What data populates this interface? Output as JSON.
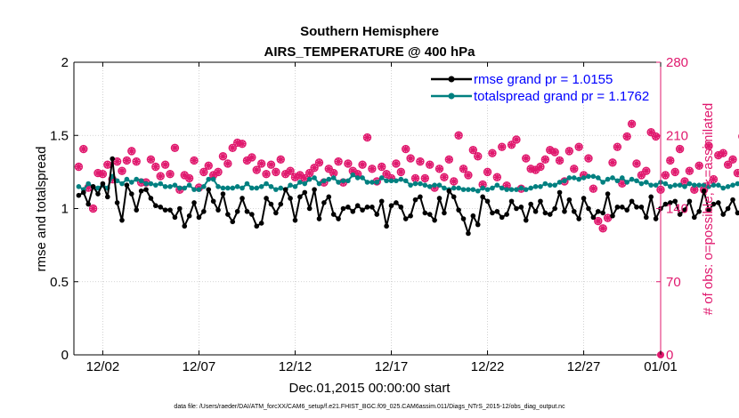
{
  "chart_data": {
    "type": "line",
    "title": "Southern Hemisphere",
    "subtitle": "AIRS_TEMPERATURE @ 400 hPa",
    "xlabel": "Dec.01,2015 00:00:00 start",
    "ylabel_left": "rmse and totalspread",
    "ylabel_right": "# of obs: o=possible; ∗=assimilated",
    "footer": "data file: /Users/raeder/DAI/ATM_forcXX/CAM6_setup/f.e21.FHIST_BGC.f09_025.CAM6assim.011/Diags_NTrS_2015-12/obs_diag_output.nc",
    "x_range": [
      0.5,
      31.0
    ],
    "x_ticks": [
      {
        "value": 2,
        "label": "12/02"
      },
      {
        "value": 7,
        "label": "12/07"
      },
      {
        "value": 12,
        "label": "12/12"
      },
      {
        "value": 17,
        "label": "12/17"
      },
      {
        "value": 22,
        "label": "12/22"
      },
      {
        "value": 27,
        "label": "12/27"
      },
      {
        "value": 31,
        "label": "01/01"
      }
    ],
    "ylim_left": [
      0,
      2
    ],
    "y_ticks_left": [
      "0",
      "0.5",
      "1",
      "1.5",
      "2"
    ],
    "ylim_right": [
      0,
      280
    ],
    "y_ticks_right": [
      "0",
      "70",
      "140",
      "210",
      "280"
    ],
    "x_start": 0.75,
    "x_step": 0.25,
    "series": [
      {
        "name": "rmse grand pr = 1.0155",
        "axis": "left",
        "color": "#000000",
        "values": [
          1.09,
          1.11,
          1.03,
          1.15,
          1.1,
          1.17,
          1.08,
          1.34,
          1.04,
          0.92,
          1.16,
          1.1,
          0.99,
          1.12,
          1.13,
          1.07,
          1.02,
          1.01,
          0.99,
          0.99,
          0.94,
          1.0,
          0.88,
          0.95,
          1.04,
          0.94,
          0.98,
          1.13,
          1.05,
          0.99,
          1.1,
          0.96,
          0.91,
          0.98,
          1.07,
          0.98,
          0.96,
          0.88,
          0.9,
          1.07,
          1.03,
          0.97,
          1.03,
          1.13,
          1.07,
          0.92,
          1.08,
          1.11,
          1.0,
          1.13,
          0.93,
          1.04,
          1.08,
          0.96,
          0.93,
          1.0,
          1.01,
          0.98,
          1.02,
          0.99,
          1.01,
          1.01,
          0.96,
          1.05,
          0.88,
          1.02,
          1.04,
          1.01,
          0.93,
          0.95,
          1.06,
          1.08,
          0.97,
          0.96,
          0.92,
          1.07,
          0.97,
          1.12,
          1.08,
          0.99,
          0.93,
          0.83,
          0.95,
          0.89,
          1.08,
          1.05,
          0.97,
          0.98,
          0.94,
          0.96,
          1.05,
          1.0,
          1.01,
          0.92,
          1.03,
          0.98,
          1.05,
          0.97,
          0.96,
          1.0,
          1.11,
          0.98,
          1.06,
          0.98,
          0.93,
          1.07,
          1.0,
          0.94,
          0.98,
          0.97,
          1.1,
          0.95,
          1.01,
          1.01,
          0.99,
          1.05,
          1.01,
          1.01,
          0.94,
          1.08,
          0.93,
          1.0,
          1.03,
          1.04,
          1.05,
          0.96,
          0.99,
          1.05,
          0.94,
          0.98,
          1.12,
          0.99,
          1.03,
          1.04,
          0.96,
          1.0,
          1.06,
          0.97,
          1.0,
          0.98,
          0.95,
          1.06,
          0.99,
          1.0,
          1.02,
          0.97,
          1.05,
          0.93,
          0.99,
          1.03,
          1.01,
          0.93,
          0.98,
          0.96,
          0.98,
          1.02,
          0.95,
          1.02,
          1.11,
          1.06,
          1.02,
          1.08,
          0.97,
          0.92,
          1.04,
          0.99,
          1.03,
          0.95,
          1.05,
          0.99,
          0.94,
          1.02,
          0.96,
          1.06,
          0.99,
          1.0,
          1.0,
          1.05,
          0.93,
          1.08,
          1.05,
          1.02,
          1.11,
          1.06,
          1.0,
          1.05,
          0.93,
          0.95,
          1.07,
          0.98,
          0.99,
          0.94,
          1.03,
          0.94,
          0.99,
          1.07,
          0.94,
          1.03,
          1.02,
          1.11,
          0.95,
          1.0,
          1.03,
          1.06,
          1.12,
          1.03,
          0.92,
          1.0,
          0.99,
          1.03,
          0.95,
          1.06,
          0.94,
          1.04,
          1.07,
          1.04,
          1.02,
          0.94,
          1.0,
          1.06,
          0.99,
          1.03,
          0.98,
          1.04,
          1.03,
          0.99,
          0.95,
          0.94,
          0.94,
          1.08,
          0.92,
          1.0,
          1.05,
          0.97,
          1.0,
          1.08,
          0.96,
          1.0,
          1.05,
          1.03,
          0.96,
          0.97,
          1.02,
          1.0,
          1.06,
          0.92,
          0.98,
          1.09,
          0.94,
          1.0,
          1.06,
          0.91,
          1.06,
          1.01,
          1.06,
          1.02,
          1.06,
          0.83,
          0.94,
          0.95,
          0.91,
          0.95,
          0.96,
          1.12,
          1.0,
          0.95,
          1.04,
          0.92
        ]
      },
      {
        "name": "totalspread grand pr = 1.1762",
        "axis": "left",
        "color": "#008080",
        "values": [
          1.15,
          1.13,
          1.17,
          1.15,
          1.14,
          1.16,
          1.14,
          1.22,
          1.19,
          1.17,
          1.2,
          1.18,
          1.2,
          1.19,
          1.17,
          1.17,
          1.16,
          1.17,
          1.15,
          1.15,
          1.16,
          1.14,
          1.14,
          1.16,
          1.13,
          1.13,
          1.15,
          1.2,
          1.2,
          1.15,
          1.14,
          1.14,
          1.14,
          1.15,
          1.14,
          1.17,
          1.14,
          1.14,
          1.15,
          1.17,
          1.15,
          1.13,
          1.14,
          1.13,
          1.16,
          1.15,
          1.18,
          1.17,
          1.2,
          1.21,
          1.17,
          1.19,
          1.2,
          1.21,
          1.18,
          1.19,
          1.19,
          1.23,
          1.21,
          1.21,
          1.18,
          1.18,
          1.18,
          1.21,
          1.19,
          1.19,
          1.19,
          1.2,
          1.19,
          1.16,
          1.17,
          1.17,
          1.16,
          1.15,
          1.16,
          1.16,
          1.14,
          1.13,
          1.14,
          1.14,
          1.13,
          1.13,
          1.13,
          1.12,
          1.14,
          1.13,
          1.14,
          1.16,
          1.14,
          1.13,
          1.13,
          1.13,
          1.14,
          1.13,
          1.14,
          1.15,
          1.15,
          1.17,
          1.16,
          1.16,
          1.18,
          1.19,
          1.21,
          1.21,
          1.2,
          1.21,
          1.22,
          1.22,
          1.21,
          1.18,
          1.2,
          1.21,
          1.19,
          1.21,
          1.18,
          1.2,
          1.19,
          1.17,
          1.18,
          1.16,
          1.16,
          1.18,
          1.17,
          1.15,
          1.16,
          1.16,
          1.15,
          1.17,
          1.16,
          1.16,
          1.16,
          1.15,
          1.16,
          1.16,
          1.14,
          1.15,
          1.16,
          1.17,
          1.15,
          1.14,
          1.14,
          1.14,
          1.17,
          1.15,
          1.15,
          1.15,
          1.14,
          1.15,
          1.16,
          1.14,
          1.15,
          1.16,
          1.17,
          1.15,
          1.17,
          1.16,
          1.17,
          1.17,
          1.19,
          1.17,
          1.19,
          1.2,
          1.18,
          1.17,
          1.17,
          1.17,
          1.17,
          1.19,
          1.17,
          1.19,
          1.18,
          1.2,
          1.2,
          1.19,
          1.18,
          1.18,
          1.19,
          1.17,
          1.16,
          1.19,
          1.19,
          1.19,
          1.19,
          1.2,
          1.21,
          1.21,
          1.23,
          1.21,
          1.22,
          1.2,
          1.19,
          1.18,
          1.19,
          1.2,
          1.2,
          1.21,
          1.19,
          1.18,
          1.2,
          1.19,
          1.2,
          1.19,
          1.17,
          1.19,
          1.18,
          1.18,
          1.17,
          1.19,
          1.18,
          1.16,
          1.17,
          1.18,
          1.17,
          1.15,
          1.17,
          1.16,
          1.17,
          1.14,
          1.15,
          1.16,
          1.15,
          1.16,
          1.15,
          1.16,
          1.15,
          1.15,
          1.16,
          1.14,
          1.15,
          1.15,
          1.15,
          1.13,
          1.14,
          1.15,
          1.14,
          1.12,
          1.13,
          1.13,
          1.13,
          1.14,
          1.14,
          1.12,
          1.13,
          1.15,
          1.13,
          1.12,
          1.14,
          1.16,
          1.12,
          1.13,
          1.15,
          1.15,
          1.13,
          1.15,
          1.14,
          1.13,
          1.14,
          1.17,
          1.15,
          1.14,
          1.16,
          1.16,
          1.15,
          1.13,
          1.14,
          1.12,
          1.13,
          1.17,
          1.15,
          1.12,
          1.14,
          1.13,
          1.11
        ]
      },
      {
        "name": "obs possible/assimilated",
        "axis": "right",
        "color": "#e0196e",
        "values": [
          180,
          197,
          160,
          140,
          174,
          173,
          182,
          168,
          185,
          176,
          186,
          195,
          185,
          165,
          165,
          187,
          180,
          171,
          182,
          173,
          198,
          158,
          172,
          169,
          186,
          160,
          175,
          181,
          172,
          175,
          190,
          183,
          198,
          203,
          202,
          186,
          189,
          177,
          183,
          173,
          182,
          175,
          187,
          173,
          176,
          170,
          172,
          169,
          174,
          179,
          184,
          165,
          178,
          174,
          185,
          165,
          183,
          176,
          173,
          182,
          208,
          178,
          166,
          180,
          173,
          169,
          183,
          175,
          197,
          188,
          169,
          185,
          169,
          182,
          160,
          178,
          170,
          187,
          166,
          210,
          178,
          172,
          196,
          190,
          163,
          175,
          193,
          170,
          199,
          162,
          201,
          206,
          159,
          188,
          178,
          177,
          180,
          187,
          196,
          194,
          186,
          166,
          195,
          178,
          199,
          172,
          188,
          159,
          128,
          121,
          131,
          184,
          199,
          164,
          209,
          221,
          183,
          172,
          176,
          213,
          209,
          158,
          172,
          186,
          175,
          197,
          166,
          176,
          158,
          181,
          158,
          200,
          168,
          191,
          193,
          182,
          187,
          174,
          209,
          193,
          183,
          168,
          222,
          194,
          182,
          168,
          212,
          185,
          173,
          177,
          182,
          189,
          216,
          168,
          161,
          178,
          189,
          186,
          170,
          212,
          196,
          178,
          184,
          189,
          172,
          180,
          168,
          211,
          186,
          216,
          197,
          211,
          180,
          180,
          213,
          185,
          191,
          170,
          175,
          188,
          228,
          195,
          220,
          207,
          185,
          178,
          182,
          216,
          180,
          194,
          161,
          197,
          186,
          193,
          193,
          197,
          181,
          203,
          198,
          170,
          183,
          223,
          189,
          208,
          182,
          168,
          192,
          214,
          183,
          205,
          185,
          232,
          201,
          183,
          215,
          201,
          182,
          170,
          206,
          186,
          209,
          181,
          185,
          210,
          183,
          182,
          237,
          203,
          179,
          184,
          181,
          193,
          193,
          228,
          206,
          197,
          168,
          183,
          214,
          190,
          176,
          186,
          205,
          195,
          216,
          196,
          190,
          183,
          204,
          182,
          183,
          187,
          188,
          200,
          210,
          230,
          209,
          214,
          202,
          187,
          194,
          179,
          198,
          222,
          191,
          191,
          184,
          181,
          194,
          209,
          216,
          175,
          180,
          225,
          220,
          195,
          186,
          183,
          210,
          209
        ]
      }
    ],
    "legend": [
      {
        "label": "rmse grand pr = 1.0155",
        "color": "#000000"
      },
      {
        "label": "totalspread grand pr = 1.1762",
        "color": "#008080"
      }
    ],
    "colors": {
      "left_axis": "#000000",
      "right_axis": "#e0196e",
      "legend_text": "#0000ff"
    }
  }
}
